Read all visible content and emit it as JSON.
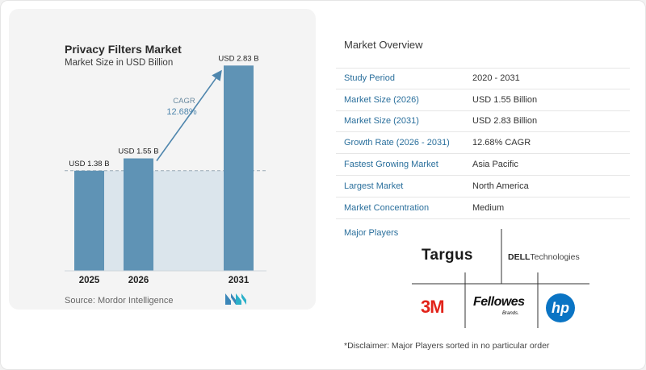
{
  "chart_data": {
    "type": "bar",
    "title": "Privacy Filters Market",
    "subtitle": "Market Size in USD Billion",
    "categories": [
      "2025",
      "2026",
      "2031"
    ],
    "values": [
      1.38,
      1.55,
      2.83
    ],
    "data_labels": [
      "USD 1.38 B",
      "USD 1.55 B",
      "USD 2.83 B"
    ],
    "annotation": {
      "label": "CAGR",
      "value": "12.68%"
    },
    "ylim": [
      0,
      3.0
    ],
    "bar_color": "#5f93b5",
    "highlight_color": "#dbe5ec"
  },
  "source": "Source:  Mordor Intelligence",
  "overview": {
    "title": "Market Overview",
    "rows": [
      {
        "key": "Study Period",
        "value": "2020 - 2031"
      },
      {
        "key": "Market Size (2026)",
        "value": "USD 1.55 Billion"
      },
      {
        "key": "Market Size (2031)",
        "value": "USD 2.83 Billion"
      },
      {
        "key": "Growth Rate (2026 - 2031)",
        "value": "12.68% CAGR"
      },
      {
        "key": "Fastest Growing Market",
        "value": "Asia Pacific"
      },
      {
        "key": "Largest Market",
        "value": "North America"
      },
      {
        "key": "Market Concentration",
        "value": "Medium"
      }
    ]
  },
  "players": {
    "title": "Major Players",
    "logos": {
      "targus": "Targus",
      "dell_bold": "DELL",
      "dell_rest": "Technologies",
      "threem": "3M",
      "fellowes": "Fellowes",
      "fellowes_sub": "Brands.",
      "hp": "hp"
    }
  },
  "disclaimer": "*Disclaimer: Major Players sorted in no particular order",
  "colors": {
    "accent": "#2a6f9c",
    "bar": "#5f93b5",
    "arrow": "#4f86ad"
  }
}
